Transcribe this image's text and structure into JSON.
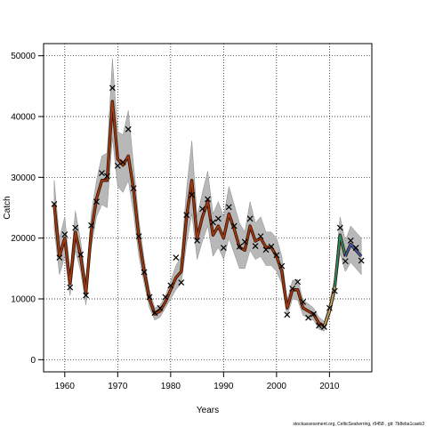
{
  "chart_data": {
    "type": "line",
    "xlabel": "Years",
    "ylabel": "Catch",
    "xlim": [
      1956,
      2018
    ],
    "ylim": [
      -2000,
      52000
    ],
    "x_ticks": [
      1960,
      1970,
      1980,
      1990,
      2000,
      2010
    ],
    "y_ticks": [
      0,
      10000,
      20000,
      30000,
      40000,
      50000
    ],
    "grid": true,
    "footer": "stockassessment.org, CelticSeaherring, r9458 , git: 7b8eba1caeb3",
    "colors": {
      "band": "#b8b8b8",
      "line_halo": "#3a1606",
      "line_main": "#a83a10",
      "line_2009": "#c4b86a",
      "line_2011": "#1e9a6a",
      "line_2013": "#3b5ec4",
      "observed": "#000000"
    },
    "estimated_catch": {
      "years": [
        1958,
        1959,
        1960,
        1961,
        1962,
        1963,
        1964,
        1965,
        1966,
        1967,
        1968,
        1969,
        1970,
        1971,
        1972,
        1973,
        1974,
        1975,
        1976,
        1977,
        1978,
        1979,
        1980,
        1981,
        1982,
        1983,
        1984,
        1985,
        1986,
        1987,
        1988,
        1989,
        1990,
        1991,
        1992,
        1993,
        1994,
        1995,
        1996,
        1997,
        1998,
        1999,
        2000,
        2001,
        2002,
        2003,
        2004,
        2005,
        2006,
        2007,
        2008,
        2009,
        2010,
        2011,
        2012,
        2013,
        2014,
        2015,
        2016
      ],
      "values": [
        25500,
        17000,
        20000,
        12500,
        21000,
        17000,
        11000,
        21000,
        26500,
        29500,
        29500,
        42500,
        33000,
        32000,
        33500,
        28000,
        20000,
        14500,
        10000,
        7500,
        8000,
        9500,
        11500,
        13500,
        14500,
        23500,
        29500,
        20000,
        23500,
        26000,
        20500,
        22000,
        20000,
        24000,
        21500,
        18500,
        18000,
        22000,
        19500,
        20000,
        18500,
        18500,
        17000,
        14500,
        8500,
        11500,
        11500,
        8500,
        8000,
        7500,
        6000,
        5500,
        8000,
        12000,
        20500,
        17000,
        19000,
        18000,
        17000
      ],
      "lower": [
        21500,
        14000,
        17000,
        10500,
        18000,
        14500,
        9000,
        18500,
        23500,
        25500,
        25000,
        36500,
        28500,
        27500,
        29500,
        24000,
        17000,
        12500,
        8500,
        6500,
        7000,
        8500,
        10000,
        11500,
        12500,
        19000,
        24000,
        16500,
        19500,
        22000,
        17000,
        18500,
        16500,
        20000,
        17500,
        15000,
        15000,
        18000,
        16500,
        17000,
        15500,
        15500,
        14500,
        12500,
        7200,
        10000,
        9800,
        7300,
        6800,
        6500,
        5000,
        4700,
        7000,
        10500,
        17500,
        14500,
        16000,
        15000,
        14000
      ],
      "upper": [
        29500,
        20000,
        23500,
        14500,
        24500,
        19500,
        13000,
        24000,
        29500,
        33500,
        34000,
        49500,
        37500,
        37000,
        41000,
        32000,
        23000,
        16500,
        11500,
        8500,
        9000,
        10500,
        13000,
        15500,
        17000,
        28000,
        36000,
        23500,
        27500,
        31000,
        24000,
        26000,
        23500,
        28500,
        25500,
        22500,
        21000,
        26000,
        22500,
        23500,
        21000,
        21000,
        20000,
        17000,
        9800,
        13000,
        13200,
        9800,
        9200,
        8500,
        7000,
        6300,
        9300,
        13600,
        23500,
        19500,
        22000,
        21000,
        20000
      ]
    },
    "observed_catch": {
      "years": [
        1958,
        1959,
        1960,
        1961,
        1962,
        1963,
        1964,
        1965,
        1966,
        1967,
        1968,
        1969,
        1970,
        1971,
        1972,
        1973,
        1974,
        1975,
        1976,
        1977,
        1978,
        1979,
        1980,
        1981,
        1982,
        1983,
        1984,
        1985,
        1986,
        1987,
        1988,
        1989,
        1990,
        1991,
        1992,
        1993,
        1994,
        1995,
        1996,
        1997,
        1998,
        1999,
        2000,
        2001,
        2002,
        2003,
        2004,
        2005,
        2006,
        2007,
        2008,
        2009,
        2010,
        2011,
        2012,
        2013,
        2014,
        2015,
        2016
      ],
      "values": [
        25600,
        16800,
        20600,
        11900,
        21700,
        17300,
        10600,
        22100,
        26000,
        30700,
        30200,
        44700,
        31900,
        32500,
        37900,
        28200,
        20300,
        14400,
        10300,
        7700,
        8500,
        10300,
        12200,
        16800,
        12700,
        23800,
        27100,
        19600,
        24800,
        26400,
        22600,
        23200,
        18400,
        25100,
        22000,
        18600,
        19400,
        23200,
        18700,
        20300,
        18100,
        18600,
        17200,
        15400,
        7400,
        11700,
        12800,
        9500,
        6900,
        7500,
        5600,
        5400,
        8500,
        11300,
        21700,
        16200,
        19600,
        18400,
        16300
      ]
    }
  }
}
